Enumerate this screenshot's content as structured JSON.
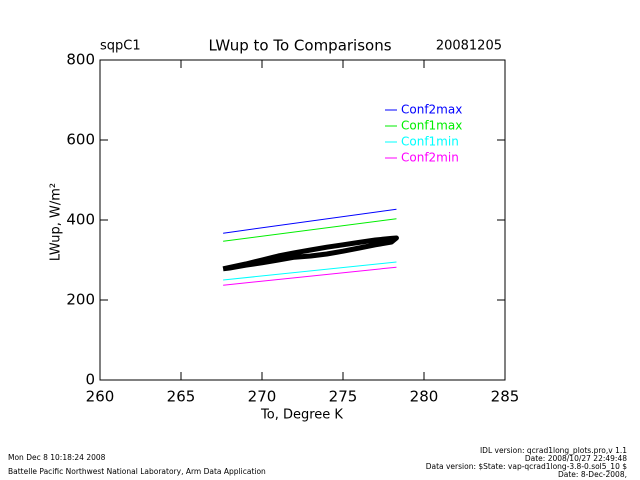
{
  "chart_data": {
    "type": "line",
    "site": "sqpC1",
    "date": "20081205",
    "title": "LWup to To Comparisons",
    "x_label": "To, Degree K",
    "y_label": "LWup, W/m²",
    "xlim": [
      260,
      285
    ],
    "xticks": [
      260,
      265,
      270,
      275,
      280,
      285
    ],
    "ylim": [
      0,
      800
    ],
    "yticks": [
      0,
      200,
      400,
      600,
      800
    ],
    "legend": "upper right",
    "series": [
      {
        "name": "Conf2max",
        "color": "#0000ff",
        "x": [
          267.6,
          278.3
        ],
        "values": [
          367,
          427
        ]
      },
      {
        "name": "Conf1max",
        "color": "#00ee00",
        "x": [
          267.6,
          278.3
        ],
        "values": [
          347,
          403
        ]
      },
      {
        "name": "Conf1min",
        "color": "#00ffff",
        "x": [
          267.6,
          278.3
        ],
        "values": [
          250,
          295
        ]
      },
      {
        "name": "Conf2min",
        "color": "#ff00ff",
        "x": [
          267.6,
          278.3
        ],
        "values": [
          237,
          282
        ]
      },
      {
        "color": "#000000",
        "x": [
          267.6,
          269,
          270,
          271,
          272,
          273,
          274,
          275,
          276,
          277,
          278,
          278.3,
          278,
          277,
          276,
          275,
          274,
          273,
          272,
          271,
          270,
          269,
          268,
          267.6
        ],
        "values": [
          278,
          290,
          300,
          310,
          318,
          325,
          332,
          338,
          344,
          350,
          354,
          355,
          345,
          338,
          330,
          322,
          315,
          310,
          307,
          300,
          293,
          287,
          280,
          278
        ]
      }
    ],
    "footer_left": [
      "Mon Dec  8 10:18:24 2008",
      "Battelle Pacific Northwest National Laboratory, Arm Data Application"
    ],
    "footer_right": [
      "IDL version: qcrad1long_plots.pro,v 1.1",
      "Date: 2008/10/27 22:49:48",
      "Data version: $State: vap-qcrad1long-3.8-0.sol5_10 $",
      "Date: 8-Dec-2008,"
    ]
  }
}
